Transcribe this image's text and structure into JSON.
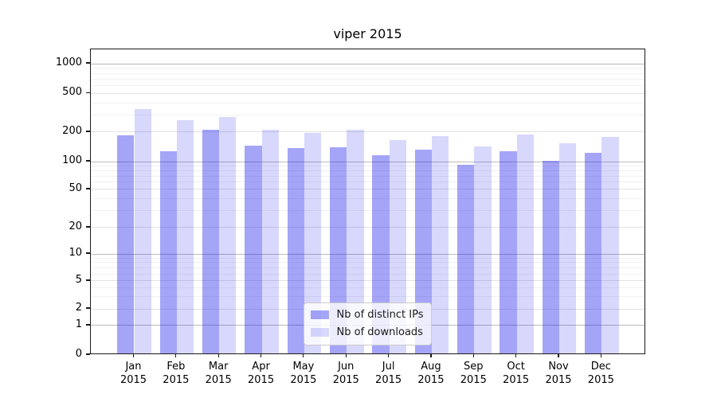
{
  "chart_data": {
    "type": "bar",
    "title": "viper 2015",
    "categories": [
      "Jan 2015",
      "Feb 2015",
      "Mar 2015",
      "Apr 2015",
      "May 2015",
      "Jun 2015",
      "Jul 2015",
      "Aug 2015",
      "Sep 2015",
      "Oct 2015",
      "Nov 2015",
      "Dec 2015"
    ],
    "x_tick_months": [
      "Jan",
      "Feb",
      "Mar",
      "Apr",
      "May",
      "Jun",
      "Jul",
      "Aug",
      "Sep",
      "Oct",
      "Nov",
      "Dec"
    ],
    "x_tick_year": "2015",
    "series": [
      {
        "name": "Nb of distinct IPs",
        "color": "rgba(10,10,235,0.37)",
        "values": [
          178,
          124,
          204,
          140,
          132,
          136,
          112,
          127,
          89,
          122,
          98,
          118
        ]
      },
      {
        "name": "Nb of downloads",
        "color": "rgba(10,10,235,0.16)",
        "values": [
          330,
          254,
          274,
          203,
          188,
          203,
          161,
          176,
          138,
          182,
          149,
          171
        ]
      }
    ],
    "y_axis": {
      "scale": "symlog",
      "ticks": [
        0,
        1,
        2,
        5,
        10,
        20,
        50,
        100,
        200,
        500,
        1000
      ],
      "tick_labels": [
        "0",
        "1",
        "2",
        "5",
        "10",
        "20",
        "50",
        "100",
        "200",
        "500",
        "1000"
      ]
    },
    "legend": {
      "position": "lower center"
    },
    "grid": true
  }
}
